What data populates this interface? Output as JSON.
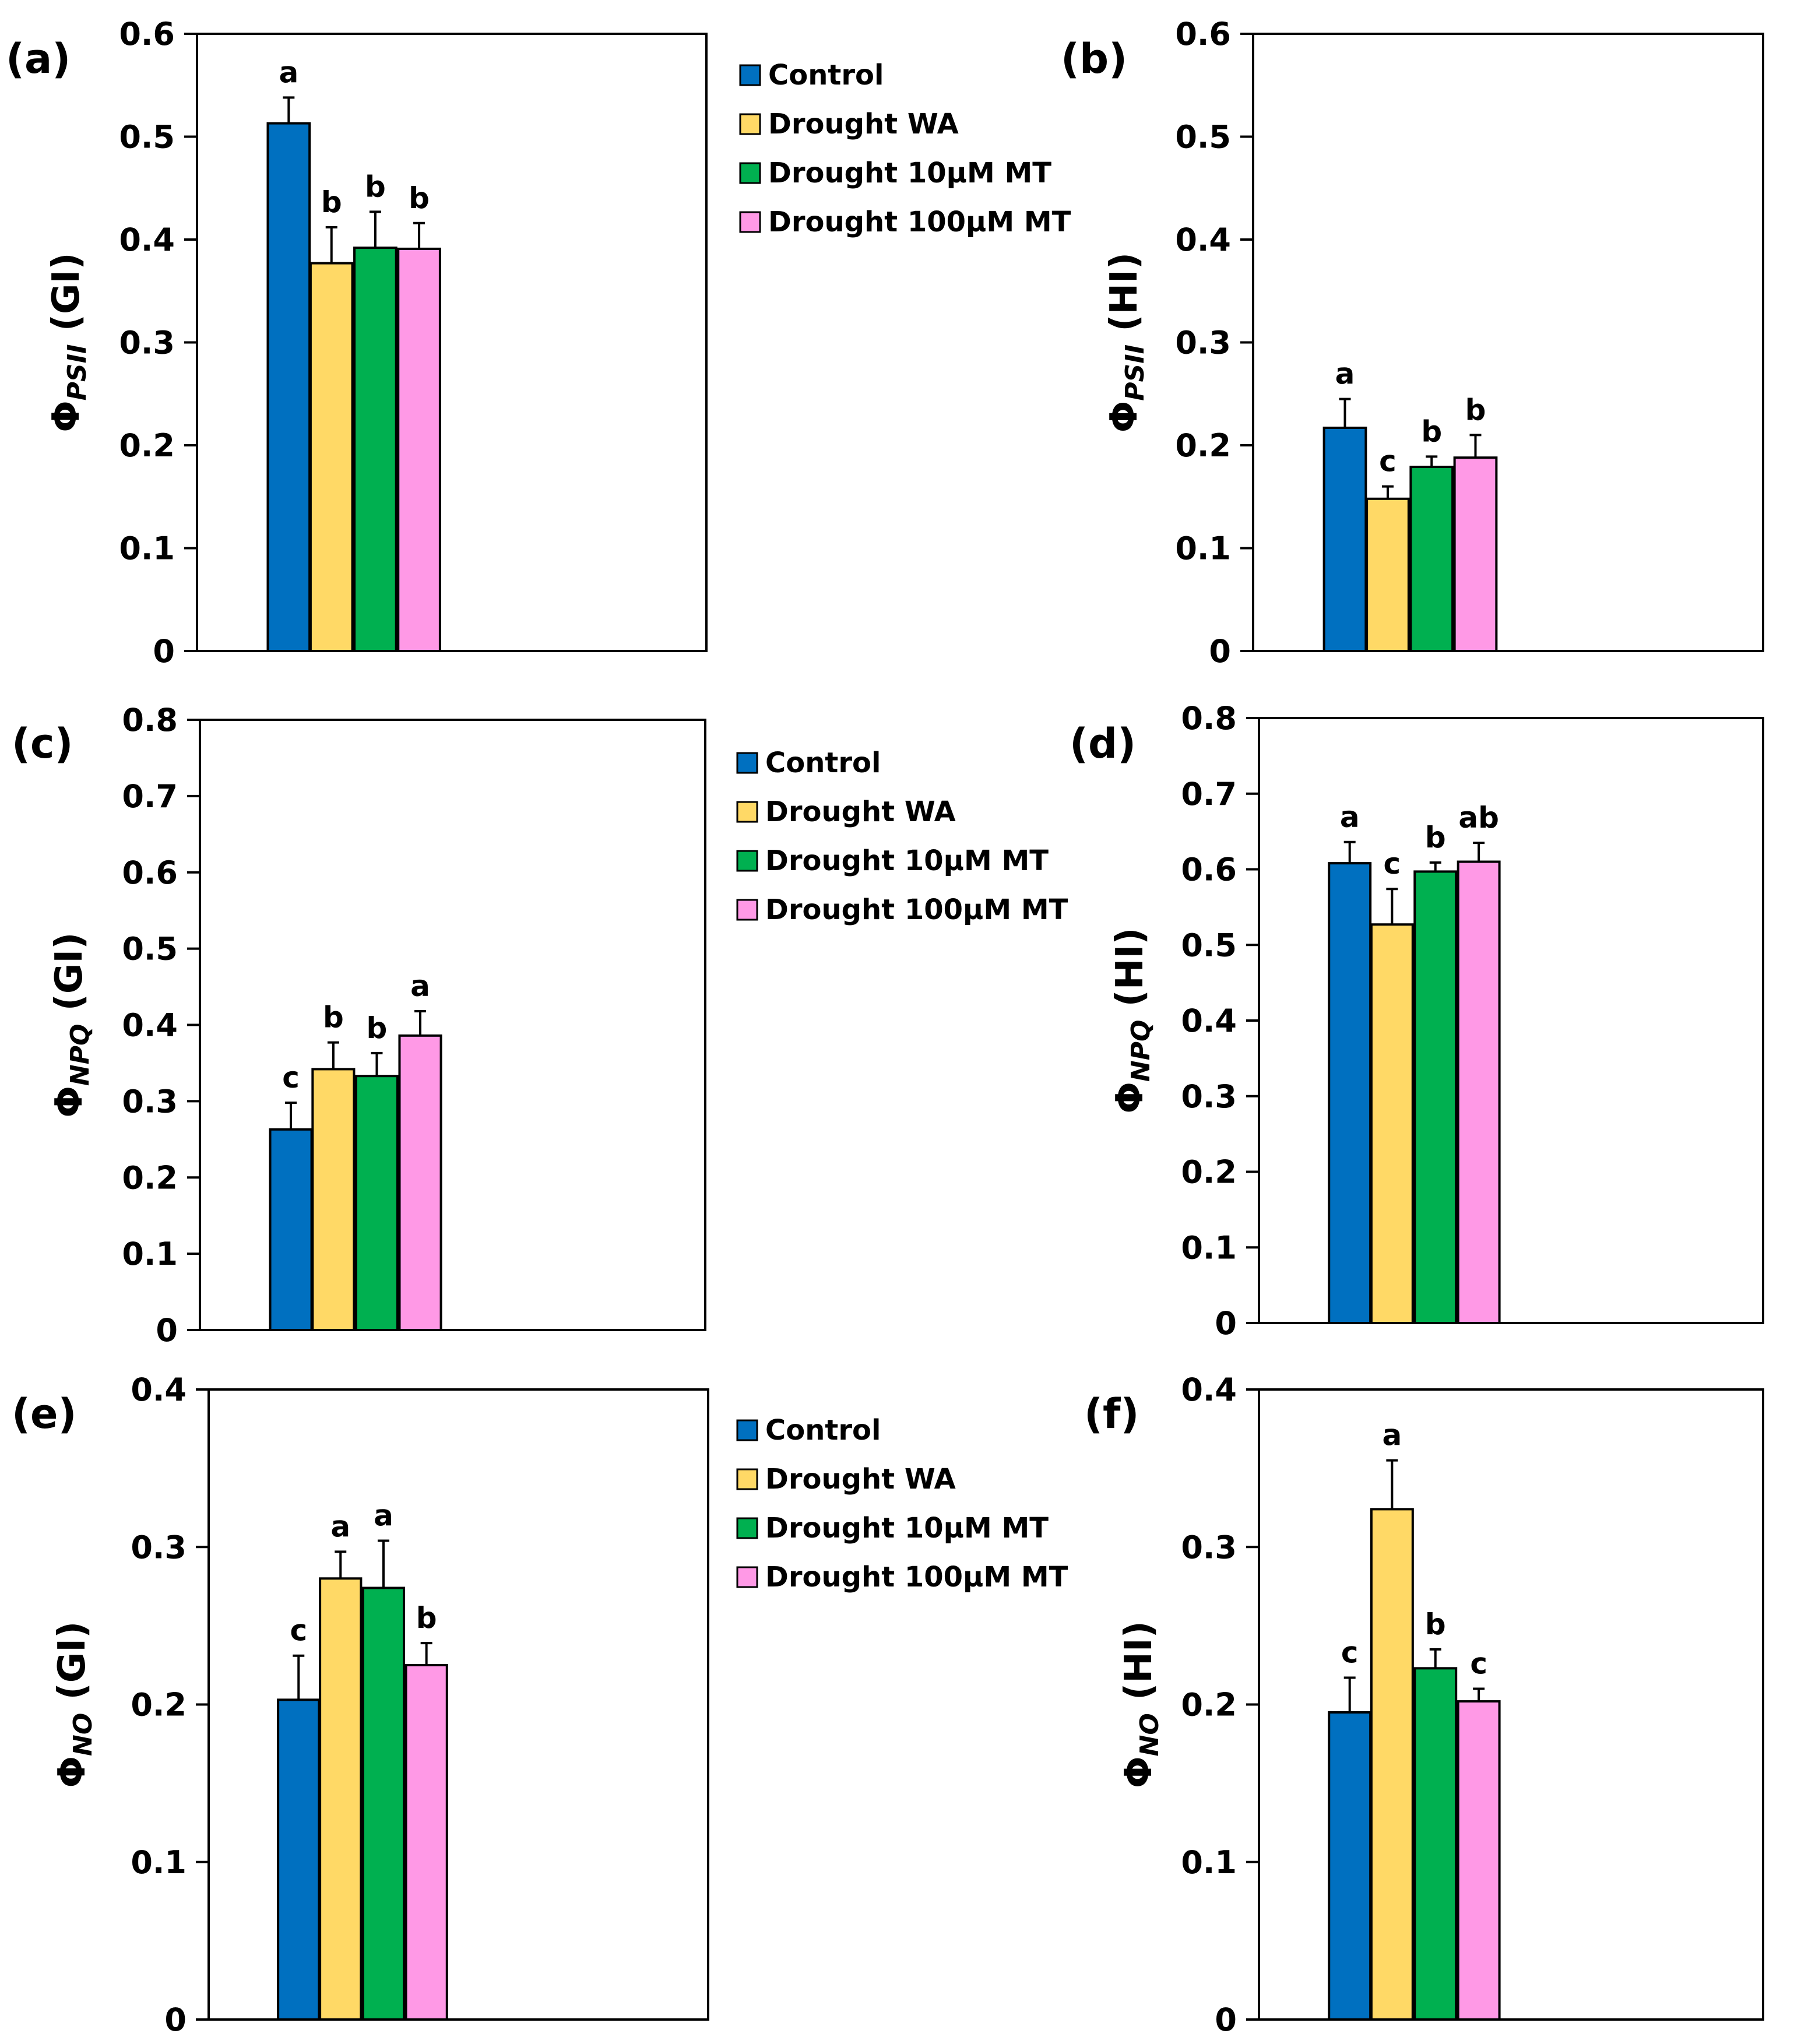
{
  "chart_data": [
    {
      "type": "bar",
      "panel_label": "(a)",
      "ylabel_symbol": "Φ",
      "ylabel_sub": "PSII",
      "ylabel_suffix": " (GI)",
      "categories": [
        "Control",
        "Drought WA",
        "Drought 10μM MT",
        "Drought 100μM MT"
      ],
      "values": [
        0.513,
        0.377,
        0.392,
        0.391
      ],
      "errors": [
        0.025,
        0.035,
        0.035,
        0.025
      ],
      "letters": [
        "a",
        "b",
        "b",
        "b"
      ],
      "ylim": [
        0,
        0.6
      ],
      "yticks": [
        "0",
        "0.1",
        "0.2",
        "0.3",
        "0.4",
        "0.5",
        "0.6"
      ],
      "legend": true
    },
    {
      "type": "bar",
      "panel_label": "(b)",
      "ylabel_symbol": "Φ",
      "ylabel_sub": "PSII",
      "ylabel_suffix": " (HI)",
      "categories": [
        "Control",
        "Drought WA",
        "Drought 10μM MT",
        "Drought 100μM MT"
      ],
      "values": [
        0.217,
        0.148,
        0.179,
        0.188
      ],
      "errors": [
        0.028,
        0.012,
        0.01,
        0.022
      ],
      "letters": [
        "a",
        "c",
        "b",
        "b"
      ],
      "ylim": [
        0,
        0.6
      ],
      "yticks": [
        "0",
        "0.1",
        "0.2",
        "0.3",
        "0.4",
        "0.5",
        "0.6"
      ],
      "legend": false
    },
    {
      "type": "bar",
      "panel_label": "(c)",
      "ylabel_symbol": "Φ",
      "ylabel_sub": "NPQ",
      "ylabel_suffix": " (GI)",
      "categories": [
        "Control",
        "Drought WA",
        "Drought 10μM MT",
        "Drought 100μM MT"
      ],
      "values": [
        0.263,
        0.342,
        0.333,
        0.386
      ],
      "errors": [
        0.035,
        0.035,
        0.03,
        0.032
      ],
      "letters": [
        "c",
        "b",
        "b",
        "a"
      ],
      "ylim": [
        0,
        0.8
      ],
      "yticks": [
        "0",
        "0.1",
        "0.2",
        "0.3",
        "0.4",
        "0.5",
        "0.6",
        "0.7",
        "0.8"
      ],
      "legend": true
    },
    {
      "type": "bar",
      "panel_label": "(d)",
      "ylabel_symbol": "Φ",
      "ylabel_sub": "NPQ",
      "ylabel_suffix": "  (HI)",
      "categories": [
        "Control",
        "Drought WA",
        "Drought 10μM MT",
        "Drought 100μM MT"
      ],
      "values": [
        0.608,
        0.527,
        0.597,
        0.61
      ],
      "errors": [
        0.028,
        0.047,
        0.012,
        0.025
      ],
      "letters": [
        "a",
        "c",
        "b",
        "ab"
      ],
      "ylim": [
        0,
        0.8
      ],
      "yticks": [
        "0",
        "0.1",
        "0.2",
        "0.3",
        "0.4",
        "0.5",
        "0.6",
        "0.7",
        "0.8"
      ],
      "legend": false
    },
    {
      "type": "bar",
      "panel_label": "(e)",
      "ylabel_symbol": "Φ",
      "ylabel_sub": "NO",
      "ylabel_suffix": " (GI)",
      "categories": [
        "Control",
        "Drought WA",
        "Drought 10μM MT",
        "Drought 100μM MT"
      ],
      "values": [
        0.203,
        0.28,
        0.274,
        0.225
      ],
      "errors": [
        0.028,
        0.017,
        0.03,
        0.014
      ],
      "letters": [
        "c",
        "a",
        "a",
        "b"
      ],
      "ylim": [
        0,
        0.4
      ],
      "yticks": [
        "0",
        "0.1",
        "0.2",
        "0.3",
        "0.4"
      ],
      "legend": true
    },
    {
      "type": "bar",
      "panel_label": "(f)",
      "ylabel_symbol": "Φ",
      "ylabel_sub": "NO",
      "ylabel_suffix": "  (HI)",
      "categories": [
        "Control",
        "Drought WA",
        "Drought 10μM MT",
        "Drought 100μM MT"
      ],
      "values": [
        0.195,
        0.324,
        0.223,
        0.202
      ],
      "errors": [
        0.022,
        0.031,
        0.012,
        0.008
      ],
      "letters": [
        "c",
        "a",
        "b",
        "c"
      ],
      "ylim": [
        0,
        0.4
      ],
      "yticks": [
        "0",
        "0.1",
        "0.2",
        "0.3",
        "0.4"
      ],
      "legend": false
    }
  ],
  "legend_labels": [
    "Control",
    "Drought WA",
    "Drought 10μM MT",
    "Drought 100μM MT"
  ],
  "colors": [
    "#0070c0",
    "#ffd966",
    "#00b050",
    "#ff99e6"
  ]
}
